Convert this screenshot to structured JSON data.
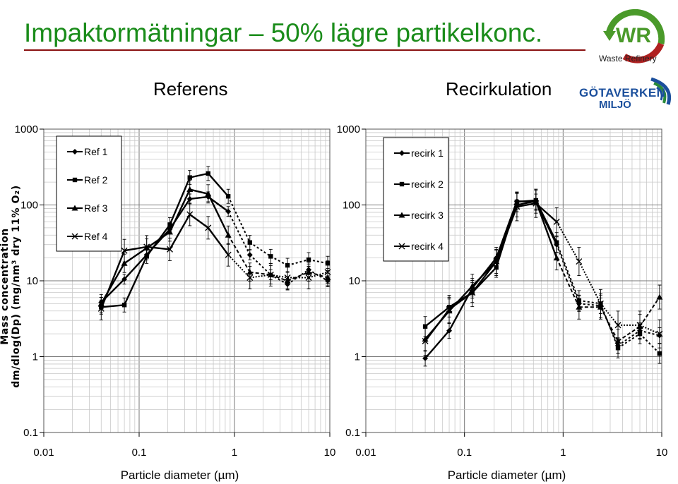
{
  "page": {
    "title": "Impaktormätningar – 50% lägre partikelkonc.",
    "logo_caption": "Waste Refinery",
    "logo_brand_letters": "WR",
    "partner_logo_line1": "GÖTAVERKEN",
    "partner_logo_line2": "MILJÖ",
    "ylabel_line1": "Mass concentration",
    "ylabel_line2": "dm/dlog(Dp) (mg/nm³ dry 11% O₂)",
    "colors": {
      "title": "#1a8c1a",
      "title_rule": "#8a1010",
      "logo_green": "#4a9a2a",
      "logo_red": "#b02020",
      "logo_blue": "#1b4f9c",
      "series": "#000000"
    }
  },
  "chart_data": [
    {
      "type": "line",
      "title": "Referens",
      "xlabel": "Particle diameter (µm)",
      "ylabel": "Mass concentration dm/dlog(Dp) (mg/nm³ dry 11% O₂)",
      "x_scale": "log",
      "y_scale": "log",
      "xlim": [
        0.01,
        10
      ],
      "ylim": [
        0.1,
        1000
      ],
      "x_ticks": [
        "0.01",
        "0.1",
        "1",
        "10"
      ],
      "y_ticks": [
        "0.1",
        "1",
        "10",
        "100",
        "1000"
      ],
      "grid": true,
      "error_bars": true,
      "legend_position": "top-left",
      "series": [
        {
          "name": "Ref 1",
          "marker": "diamond",
          "x": [
            0.04,
            0.07,
            0.12,
            0.21,
            0.34,
            0.53,
            0.86,
            1.45,
            2.4,
            3.6,
            6.0,
            9.5
          ],
          "y": [
            5.2,
            10.5,
            22,
            48,
            120,
            128,
            82,
            22,
            12,
            9,
            14,
            10
          ]
        },
        {
          "name": "Ref 2",
          "marker": "square",
          "x": [
            0.04,
            0.07,
            0.12,
            0.21,
            0.34,
            0.53,
            0.86,
            1.45,
            2.4,
            3.6,
            6.0,
            9.5
          ],
          "y": [
            4.5,
            4.8,
            21,
            55,
            230,
            260,
            130,
            32,
            21,
            16,
            19,
            17
          ]
        },
        {
          "name": "Ref 3",
          "marker": "triangle",
          "x": [
            0.04,
            0.07,
            0.12,
            0.21,
            0.34,
            0.53,
            0.86,
            1.45,
            2.4,
            3.6,
            6.0,
            9.5
          ],
          "y": [
            5.0,
            17,
            27,
            44,
            160,
            140,
            40,
            13,
            12,
            10,
            13,
            11
          ]
        },
        {
          "name": "Ref 4",
          "marker": "x",
          "x": [
            0.04,
            0.07,
            0.12,
            0.21,
            0.34,
            0.53,
            0.86,
            1.45,
            2.4,
            3.6,
            6.0,
            9.5
          ],
          "y": [
            4.3,
            25,
            28,
            26,
            75,
            50,
            22,
            11,
            12,
            11,
            11,
            13
          ]
        }
      ]
    },
    {
      "type": "line",
      "title": "Recirkulation",
      "xlabel": "Particle diameter (µm)",
      "ylabel": "",
      "x_scale": "log",
      "y_scale": "log",
      "xlim": [
        0.01,
        10
      ],
      "ylim": [
        0.1,
        1000
      ],
      "x_ticks": [
        "0.01",
        "0.1",
        "1",
        "10"
      ],
      "y_ticks": [
        "0.1",
        "1",
        "10",
        "100",
        "1000"
      ],
      "grid": true,
      "error_bars": true,
      "legend_position": "top-left",
      "series": [
        {
          "name": "recirk 1",
          "marker": "diamond",
          "x": [
            0.04,
            0.07,
            0.12,
            0.21,
            0.34,
            0.53,
            0.86,
            1.45,
            2.4,
            3.6,
            6.0,
            9.5
          ],
          "y": [
            0.95,
            2.2,
            8.0,
            20,
            112,
            110,
            30,
            5.0,
            4.7,
            1.4,
            2.2,
            1.9
          ]
        },
        {
          "name": "recirk 2",
          "marker": "square",
          "x": [
            0.04,
            0.07,
            0.12,
            0.21,
            0.34,
            0.53,
            0.86,
            1.45,
            2.4,
            3.6,
            6.0,
            9.5
          ],
          "y": [
            2.5,
            4.5,
            7.0,
            15,
            110,
            115,
            32,
            5.5,
            5.0,
            1.3,
            2.0,
            1.1
          ]
        },
        {
          "name": "recirk 3",
          "marker": "triangle",
          "x": [
            0.04,
            0.07,
            0.12,
            0.21,
            0.34,
            0.53,
            0.86,
            1.45,
            2.4,
            3.6,
            6.0,
            9.5
          ],
          "y": [
            1.7,
            4.0,
            8.5,
            18,
            100,
            112,
            20,
            4.5,
            4.5,
            1.6,
            2.5,
            6.1
          ]
        },
        {
          "name": "recirk 4",
          "marker": "x",
          "x": [
            0.04,
            0.07,
            0.12,
            0.21,
            0.34,
            0.53,
            0.86,
            1.45,
            2.4,
            3.6,
            6.0,
            9.5
          ],
          "y": [
            1.6,
            4.2,
            7.0,
            18,
            95,
            105,
            60,
            18,
            5.0,
            2.6,
            2.6,
            2.0
          ]
        }
      ]
    }
  ]
}
